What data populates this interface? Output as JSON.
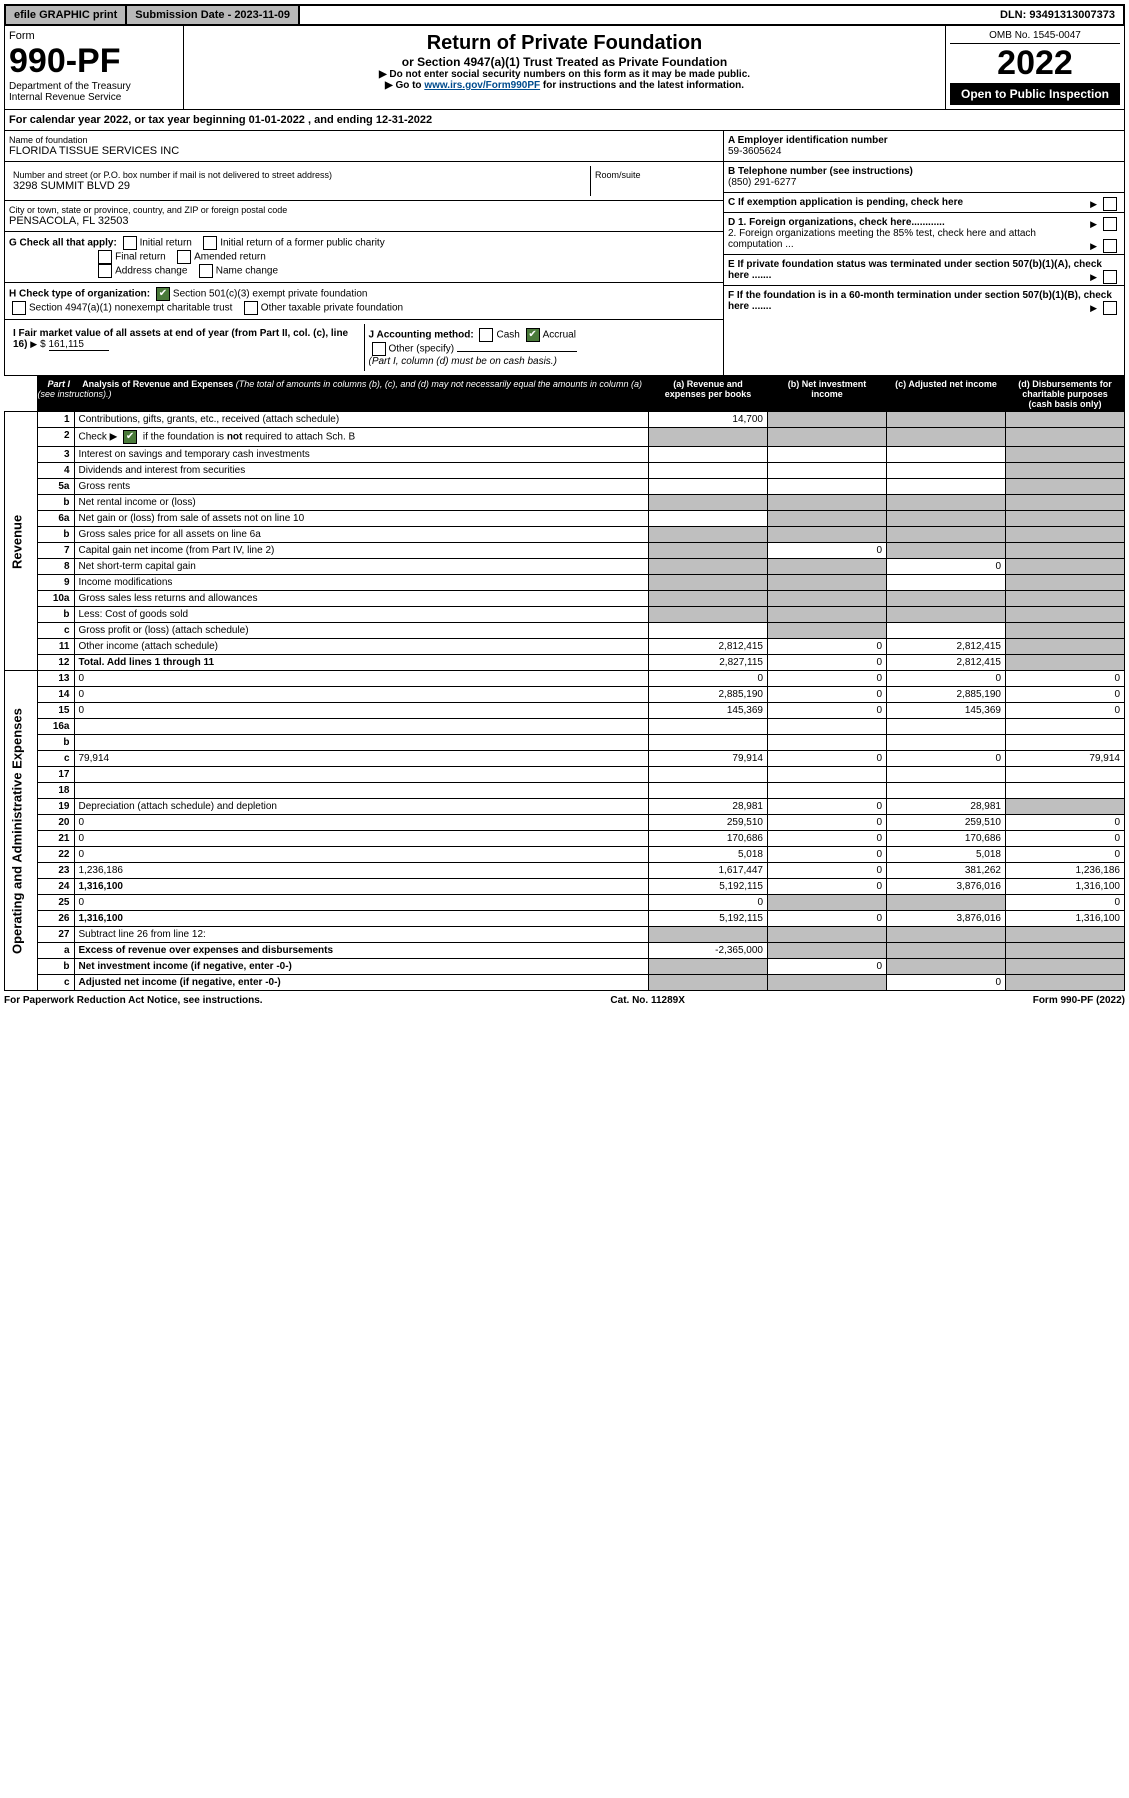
{
  "topbar": {
    "efile": "efile GRAPHIC print",
    "submission_label": "Submission Date - 2023-11-09",
    "dln": "DLN: 93491313007373"
  },
  "header": {
    "form_label": "Form",
    "form_no": "990-PF",
    "dept1": "Department of the Treasury",
    "dept2": "Internal Revenue Service",
    "title": "Return of Private Foundation",
    "subtitle": "or Section 4947(a)(1) Trust Treated as Private Foundation",
    "instr1": "▶ Do not enter social security numbers on this form as it may be made public.",
    "instr2_pre": "▶ Go to ",
    "instr2_link": "www.irs.gov/Form990PF",
    "instr2_post": " for instructions and the latest information.",
    "omb": "OMB No. 1545-0047",
    "year": "2022",
    "open": "Open to Public Inspection"
  },
  "cal_year": {
    "text_pre": "For calendar year 2022, or tax year beginning ",
    "begin": "01-01-2022",
    "mid": " , and ending ",
    "end": "12-31-2022"
  },
  "entity": {
    "name_label": "Name of foundation",
    "name": "FLORIDA TISSUE SERVICES INC",
    "addr_label": "Number and street (or P.O. box number if mail is not delivered to street address)",
    "addr": "3298 SUMMIT BLVD 29",
    "room_label": "Room/suite",
    "city_label": "City or town, state or province, country, and ZIP or foreign postal code",
    "city": "PENSACOLA, FL  32503",
    "ein_label": "A Employer identification number",
    "ein": "59-3605624",
    "phone_label": "B Telephone number (see instructions)",
    "phone": "(850) 291-6277",
    "c_label": "C If exemption application is pending, check here",
    "d1": "D 1. Foreign organizations, check here............",
    "d2": "2. Foreign organizations meeting the 85% test, check here and attach computation ...",
    "e": "E   If private foundation status was terminated under section 507(b)(1)(A), check here .......",
    "f": "F   If the foundation is in a 60-month termination under section 507(b)(1)(B), check here .......",
    "g_label": "G Check all that apply:",
    "g_opts": [
      "Initial return",
      "Final return",
      "Address change",
      "Initial return of a former public charity",
      "Amended return",
      "Name change"
    ],
    "h_label": "H Check type of organization:",
    "h_opt1": "Section 501(c)(3) exempt private foundation",
    "h_opt2": "Section 4947(a)(1) nonexempt charitable trust",
    "h_opt3": "Other taxable private foundation",
    "i_label": "I Fair market value of all assets at end of year (from Part II, col. (c), line 16)",
    "i_val": "161,115",
    "j_label": "J Accounting method:",
    "j_cash": "Cash",
    "j_accrual": "Accrual",
    "j_other": "Other (specify)",
    "j_note": "(Part I, column (d) must be on cash basis.)"
  },
  "part1": {
    "label": "Part I",
    "title": "Analysis of Revenue and Expenses",
    "title_note": "(The total of amounts in columns (b), (c), and (d) may not necessarily equal the amounts in column (a) (see instructions).)",
    "col_a": "(a)   Revenue and expenses per books",
    "col_b": "(b)  Net investment income",
    "col_c": "(c)  Adjusted net income",
    "col_d": "(d)  Disbursements for charitable purposes (cash basis only)",
    "side_rev": "Revenue",
    "side_exp": "Operating and Administrative Expenses"
  },
  "rows": [
    {
      "n": "1",
      "d": "Contributions, gifts, grants, etc., received (attach schedule)",
      "a": "14,700",
      "b_shade": true,
      "c_shade": true,
      "d_shade": true
    },
    {
      "n": "2",
      "d": "Check ▶ ☑ if the foundation is not required to attach Sch. B",
      "a_shade": true,
      "b_shade": true,
      "c_shade": true,
      "d_shade": true,
      "bold": false
    },
    {
      "n": "3",
      "d": "Interest on savings and temporary cash investments",
      "a": "",
      "b": "",
      "c": "",
      "d_shade": true
    },
    {
      "n": "4",
      "d": "Dividends and interest from securities",
      "a": "",
      "b": "",
      "c": "",
      "d_shade": true
    },
    {
      "n": "5a",
      "d": "Gross rents",
      "a": "",
      "b": "",
      "c": "",
      "d_shade": true
    },
    {
      "n": "b",
      "d": "Net rental income or (loss)",
      "a_shade": true,
      "b_shade": true,
      "c_shade": true,
      "d_shade": true
    },
    {
      "n": "6a",
      "d": "Net gain or (loss) from sale of assets not on line 10",
      "a": "",
      "b_shade": true,
      "c_shade": true,
      "d_shade": true
    },
    {
      "n": "b",
      "d": "Gross sales price for all assets on line 6a",
      "a_shade": true,
      "b_shade": true,
      "c_shade": true,
      "d_shade": true
    },
    {
      "n": "7",
      "d": "Capital gain net income (from Part IV, line 2)",
      "a_shade": true,
      "b": "0",
      "c_shade": true,
      "d_shade": true
    },
    {
      "n": "8",
      "d": "Net short-term capital gain",
      "a_shade": true,
      "b_shade": true,
      "c": "0",
      "d_shade": true
    },
    {
      "n": "9",
      "d": "Income modifications",
      "a_shade": true,
      "b_shade": true,
      "c": "",
      "d_shade": true
    },
    {
      "n": "10a",
      "d": "Gross sales less returns and allowances",
      "a_shade": true,
      "b_shade": true,
      "c_shade": true,
      "d_shade": true
    },
    {
      "n": "b",
      "d": "Less: Cost of goods sold",
      "a_shade": true,
      "b_shade": true,
      "c_shade": true,
      "d_shade": true
    },
    {
      "n": "c",
      "d": "Gross profit or (loss) (attach schedule)",
      "a": "",
      "b_shade": true,
      "c": "",
      "d_shade": true
    },
    {
      "n": "11",
      "d": "Other income (attach schedule)",
      "a": "2,812,415",
      "b": "0",
      "c": "2,812,415",
      "d_shade": true
    },
    {
      "n": "12",
      "d": "Total. Add lines 1 through 11",
      "a": "2,827,115",
      "b": "0",
      "c": "2,812,415",
      "d_shade": true,
      "bold": true
    },
    {
      "n": "13",
      "d": "0",
      "a": "0",
      "b": "0",
      "c": "0"
    },
    {
      "n": "14",
      "d": "0",
      "a": "2,885,190",
      "b": "0",
      "c": "2,885,190"
    },
    {
      "n": "15",
      "d": "0",
      "a": "145,369",
      "b": "0",
      "c": "145,369"
    },
    {
      "n": "16a",
      "d": "",
      "a": "",
      "b": "",
      "c": ""
    },
    {
      "n": "b",
      "d": "",
      "a": "",
      "b": "",
      "c": ""
    },
    {
      "n": "c",
      "d": "79,914",
      "a": "79,914",
      "b": "0",
      "c": "0"
    },
    {
      "n": "17",
      "d": "",
      "a": "",
      "b": "",
      "c": ""
    },
    {
      "n": "18",
      "d": "",
      "a": "",
      "b": "",
      "c": ""
    },
    {
      "n": "19",
      "d": "Depreciation (attach schedule) and depletion",
      "a": "28,981",
      "b": "0",
      "c": "28,981",
      "d_shade": true
    },
    {
      "n": "20",
      "d": "0",
      "a": "259,510",
      "b": "0",
      "c": "259,510"
    },
    {
      "n": "21",
      "d": "0",
      "a": "170,686",
      "b": "0",
      "c": "170,686"
    },
    {
      "n": "22",
      "d": "0",
      "a": "5,018",
      "b": "0",
      "c": "5,018"
    },
    {
      "n": "23",
      "d": "1,236,186",
      "a": "1,617,447",
      "b": "0",
      "c": "381,262"
    },
    {
      "n": "24",
      "d": "1,316,100",
      "a": "5,192,115",
      "b": "0",
      "c": "3,876,016",
      "bold": true
    },
    {
      "n": "25",
      "d": "0",
      "a": "0",
      "b_shade": true,
      "c_shade": true
    },
    {
      "n": "26",
      "d": "1,316,100",
      "a": "5,192,115",
      "b": "0",
      "c": "3,876,016",
      "bold": true
    },
    {
      "n": "27",
      "d": "Subtract line 26 from line 12:",
      "a_shade": true,
      "b_shade": true,
      "c_shade": true,
      "d_shade": true
    },
    {
      "n": "a",
      "d": "Excess of revenue over expenses and disbursements",
      "a": "-2,365,000",
      "b_shade": true,
      "c_shade": true,
      "d_shade": true,
      "bold": true
    },
    {
      "n": "b",
      "d": "Net investment income (if negative, enter -0-)",
      "a_shade": true,
      "b": "0",
      "c_shade": true,
      "d_shade": true,
      "bold": true
    },
    {
      "n": "c",
      "d": "Adjusted net income (if negative, enter -0-)",
      "a_shade": true,
      "b_shade": true,
      "c": "0",
      "d_shade": true,
      "bold": true
    }
  ],
  "footer": {
    "left": "For Paperwork Reduction Act Notice, see instructions.",
    "mid": "Cat. No. 11289X",
    "right": "Form 990-PF (2022)"
  },
  "colors": {
    "shade": "#bfbfbf",
    "topbar_bg": "#b8b8b8",
    "link": "#004b8d",
    "check_green": "#4a7a3a"
  }
}
